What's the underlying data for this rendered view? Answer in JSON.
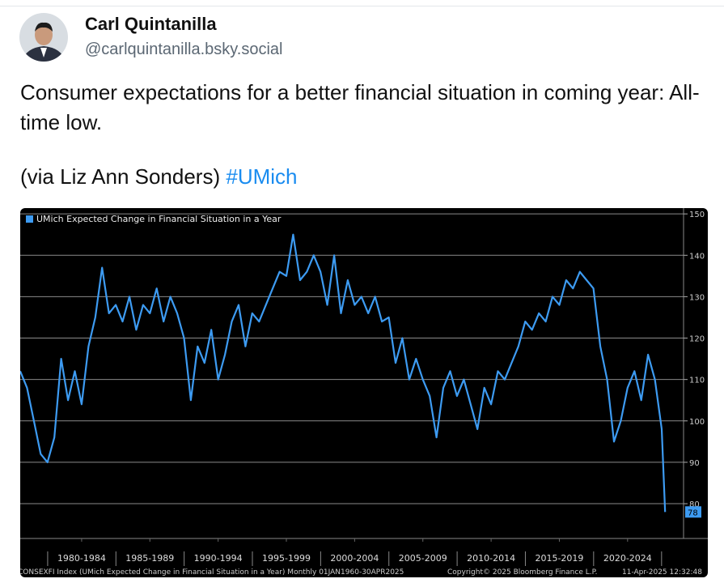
{
  "post": {
    "author": "Carl Quintanilla",
    "handle": "@carlquintanilla.bsky.social",
    "text_line": "Consumer expectations for a better financial situation in coming year: All-time low.",
    "via": "(via Liz Ann Sonders)",
    "hashtag": "#UMich"
  },
  "chart_data": {
    "type": "line",
    "x": [
      1978,
      1978.5,
      1979,
      1979.5,
      1980,
      1980.5,
      1981,
      1981.5,
      1982,
      1982.5,
      1983,
      1983.5,
      1984,
      1984.5,
      1985,
      1985.5,
      1986,
      1986.5,
      1987,
      1987.5,
      1988,
      1988.5,
      1989,
      1989.5,
      1990,
      1990.5,
      1991,
      1991.5,
      1992,
      1992.5,
      1993,
      1993.5,
      1994,
      1994.5,
      1995,
      1995.5,
      1996,
      1996.5,
      1997,
      1997.5,
      1998,
      1998.5,
      1999,
      1999.5,
      2000,
      2000.5,
      2001,
      2001.5,
      2002,
      2002.5,
      2003,
      2003.5,
      2004,
      2004.5,
      2005,
      2005.5,
      2006,
      2006.5,
      2007,
      2007.5,
      2008,
      2008.5,
      2009,
      2009.5,
      2010,
      2010.5,
      2011,
      2011.5,
      2012,
      2012.5,
      2013,
      2013.5,
      2014,
      2014.5,
      2015,
      2015.5,
      2016,
      2016.5,
      2017,
      2017.5,
      2018,
      2018.5,
      2019,
      2019.5,
      2020,
      2020.5,
      2021,
      2021.5,
      2022,
      2022.5,
      2023,
      2023.5,
      2024,
      2024.5,
      2025,
      2025.25
    ],
    "series": [
      {
        "name": "UMich Expected Change in Financial Situation in a Year",
        "color": "#3d9bf2",
        "values": [
          112,
          108,
          100,
          92,
          90,
          96,
          115,
          105,
          112,
          104,
          118,
          125,
          137,
          126,
          128,
          124,
          130,
          122,
          128,
          126,
          132,
          124,
          130,
          126,
          120,
          105,
          118,
          114,
          122,
          110,
          116,
          124,
          128,
          118,
          126,
          124,
          128,
          132,
          136,
          135,
          145,
          134,
          136,
          140,
          136,
          128,
          140,
          126,
          134,
          128,
          130,
          126,
          130,
          124,
          125,
          114,
          120,
          110,
          115,
          110,
          106,
          96,
          108,
          112,
          106,
          110,
          104,
          98,
          108,
          104,
          112,
          110,
          114,
          118,
          124,
          122,
          126,
          124,
          130,
          128,
          134,
          132,
          136,
          134,
          132,
          118,
          110,
          95,
          100,
          108,
          112,
          105,
          116,
          110,
          98,
          78
        ]
      }
    ],
    "xlim": [
      1978,
      2026.6
    ],
    "xticks": [
      {
        "value": 1982.5,
        "label": "1980-1984"
      },
      {
        "value": 1987.5,
        "label": "1985-1989"
      },
      {
        "value": 1992.5,
        "label": "1990-1994"
      },
      {
        "value": 1997.5,
        "label": "1995-1999"
      },
      {
        "value": 2002.5,
        "label": "2000-2004"
      },
      {
        "value": 2007.5,
        "label": "2005-2009"
      },
      {
        "value": 2012.5,
        "label": "2010-2014"
      },
      {
        "value": 2017.5,
        "label": "2015-2019"
      },
      {
        "value": 2022.5,
        "label": "2020-2024"
      }
    ],
    "ylim": [
      71.6,
      151.4
    ],
    "yticks": [
      80,
      90,
      100,
      110,
      120,
      130,
      140,
      150
    ],
    "grid": true,
    "footer_left": "CONSEXFI Index (UMich Expected Change in Financial Situation in a Year)  Monthly 01JAN1960-30APR2025",
    "footer_mid": "Copyright© 2025 Bloomberg Finance L.P.",
    "footer_right": "11-Apr-2025 12:32:48"
  }
}
